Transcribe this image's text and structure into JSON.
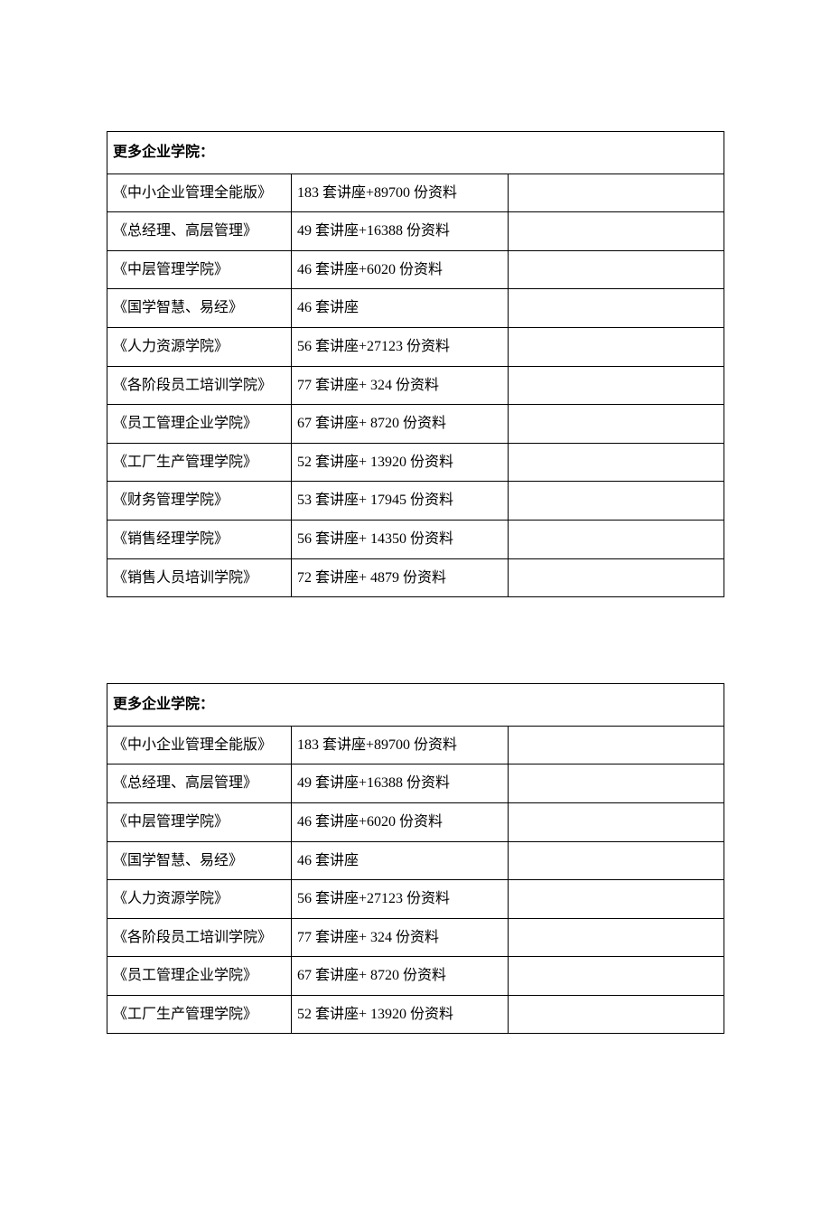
{
  "text_color": "#000000",
  "border_color": "#000000",
  "background_color": "#ffffff",
  "font_family": "SimSun",
  "font_size": 16,
  "table1": {
    "header": "更多企业学院：",
    "rows": [
      {
        "title": "《中小企业管理全能版》",
        "content": "183 套讲座+89700 份资料"
      },
      {
        "title": "《总经理、高层管理》",
        "content": "49 套讲座+16388 份资料"
      },
      {
        "title": "《中层管理学院》",
        "content": "46 套讲座+6020 份资料"
      },
      {
        "title": "《国学智慧、易经》",
        "content": "46 套讲座"
      },
      {
        "title": "《人力资源学院》",
        "content": "56 套讲座+27123 份资料"
      },
      {
        "title": "《各阶段员工培训学院》",
        "content": "77 套讲座+ 324 份资料"
      },
      {
        "title": "《员工管理企业学院》",
        "content": "67 套讲座+ 8720 份资料"
      },
      {
        "title": "《工厂生产管理学院》",
        "content": "52 套讲座+ 13920 份资料"
      },
      {
        "title": "《财务管理学院》",
        "content": "53 套讲座+ 17945 份资料"
      },
      {
        "title": "《销售经理学院》",
        "content": "56 套讲座+ 14350 份资料"
      },
      {
        "title": "《销售人员培训学院》",
        "content": "72 套讲座+ 4879 份资料"
      }
    ]
  },
  "table2": {
    "header": "更多企业学院：",
    "rows": [
      {
        "title": "《中小企业管理全能版》",
        "content": "183 套讲座+89700 份资料"
      },
      {
        "title": "《总经理、高层管理》",
        "content": "49 套讲座+16388 份资料"
      },
      {
        "title": "《中层管理学院》",
        "content": "46 套讲座+6020 份资料"
      },
      {
        "title": "《国学智慧、易经》",
        "content": "46 套讲座"
      },
      {
        "title": "《人力资源学院》",
        "content": "56 套讲座+27123 份资料"
      },
      {
        "title": "《各阶段员工培训学院》",
        "content": "77 套讲座+ 324 份资料"
      },
      {
        "title": "《员工管理企业学院》",
        "content": "67 套讲座+ 8720 份资料"
      },
      {
        "title": "《工厂生产管理学院》",
        "content": "52 套讲座+ 13920 份资料"
      }
    ]
  }
}
